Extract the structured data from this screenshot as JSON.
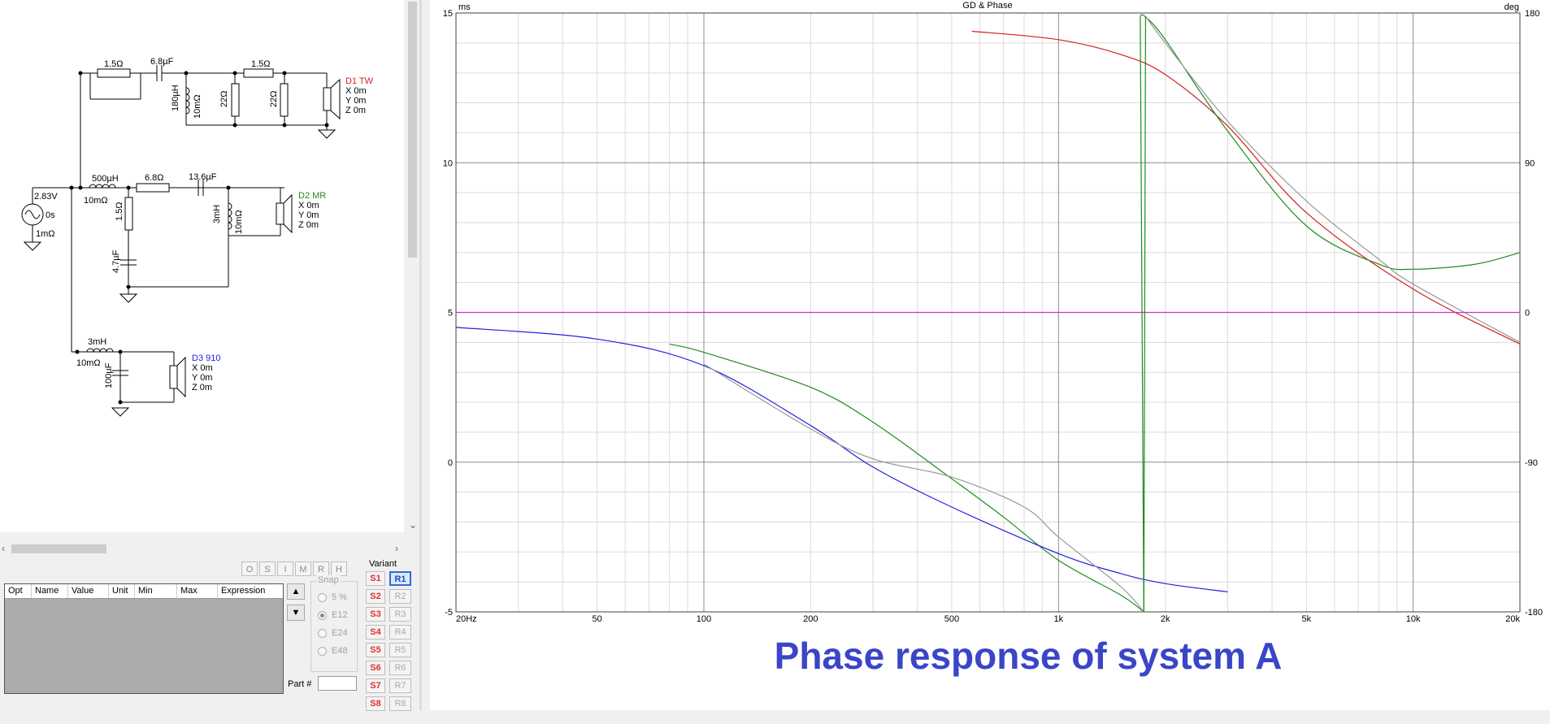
{
  "schematic": {
    "source": {
      "voltage": "2.83V",
      "delay": "0s",
      "resistance": "1mΩ"
    },
    "tweeter_branch": {
      "parallel_resistor": "1.5Ω",
      "capacitor": "6.8µF",
      "shunt_inductor": "180µH",
      "shunt_inductor_dcr": "10mΩ",
      "resistor_a": "22Ω",
      "resistor_b": "22Ω",
      "series_resistor": "1.5Ω",
      "driver": {
        "name": "D1 TW",
        "x": "X 0m",
        "y": "Y 0m",
        "z": "Z 0m",
        "color": "#e02020"
      }
    },
    "mid_branch": {
      "inductor": "500µH",
      "inductor_dcr": "10mΩ",
      "resistor": "6.8Ω",
      "capacitor": "13.6µF",
      "zobel_resistor": "1.5Ω",
      "zobel_capacitor": "4.7µF",
      "shunt_inductor": "3mH",
      "shunt_inductor_dcr": "10mΩ",
      "driver": {
        "name": "D2 MR",
        "x": "X 0m",
        "y": "Y 0m",
        "z": "Z 0m",
        "color": "#1a8a1a"
      }
    },
    "woofer_branch": {
      "inductor": "3mH",
      "inductor_dcr": "10mΩ",
      "capacitor": "100µF",
      "driver": {
        "name": "D3 910",
        "x": "X 0m",
        "y": "Y 0m",
        "z": "Z 0m",
        "color": "#2020e0"
      }
    }
  },
  "toolbar": {
    "buttons": [
      "O",
      "S",
      "I",
      "M",
      "R",
      "H"
    ]
  },
  "parts_table": {
    "columns": [
      "Opt",
      "Name",
      "Value",
      "Unit",
      "Min",
      "Max",
      "Expression"
    ]
  },
  "snap": {
    "title": "Snap",
    "options": [
      "5 %",
      "E12",
      "E24",
      "E48"
    ],
    "selected": "E12"
  },
  "part_number": {
    "label": "Part #",
    "value": ""
  },
  "variant": {
    "label": "Variant",
    "s_buttons": [
      "S1",
      "S2",
      "S3",
      "S4",
      "S5",
      "S6",
      "S7",
      "S8"
    ],
    "r_buttons": [
      "R1",
      "R2",
      "R3",
      "R4",
      "R5",
      "R6",
      "R7",
      "R8"
    ],
    "active": "R1"
  },
  "chart_data": {
    "type": "line",
    "title": "GD & Phase",
    "caption": "Phase response of system A",
    "x_scale": "log",
    "xlim": [
      20,
      20000
    ],
    "x_ticks": [
      {
        "v": 20,
        "label": "20Hz"
      },
      {
        "v": 50,
        "label": "50"
      },
      {
        "v": 100,
        "label": "100"
      },
      {
        "v": 200,
        "label": "200"
      },
      {
        "v": 500,
        "label": "500"
      },
      {
        "v": 1000,
        "label": "1k"
      },
      {
        "v": 2000,
        "label": "2k"
      },
      {
        "v": 5000,
        "label": "5k"
      },
      {
        "v": 10000,
        "label": "10k"
      },
      {
        "v": 20000,
        "label": "20k"
      }
    ],
    "left_axis": {
      "unit": "ms",
      "ylim": [
        -5,
        15
      ],
      "ticks": [
        "-5",
        "0",
        "5",
        "10",
        "15"
      ]
    },
    "right_axis": {
      "unit": "deg",
      "ylim": [
        -180,
        180
      ],
      "ticks": [
        "-180",
        "-90",
        "0",
        "90",
        "180"
      ]
    },
    "grid": true,
    "series": [
      {
        "color": "#d42020",
        "axis": "deg",
        "x": [
          570,
          1000,
          1500,
          2000,
          3000,
          5000,
          10000,
          20000
        ],
        "y": [
          169,
          164,
          155,
          143,
          112,
          60,
          14,
          -19
        ]
      },
      {
        "color": "#1e8c1e",
        "axis": "deg",
        "x": [
          1700,
          1750,
          2000,
          3000,
          5000,
          8000,
          10000,
          15000,
          20000
        ],
        "y": [
          178,
          178,
          164,
          109,
          52,
          29,
          26,
          29,
          36
        ]
      },
      {
        "color": "#1e8c1e",
        "axis": "deg",
        "x": [
          80,
          100,
          200,
          300,
          500,
          700,
          1000,
          1500,
          1740
        ],
        "y": [
          -19,
          -24,
          -45,
          -66,
          -100,
          -123,
          -149,
          -170,
          -180
        ]
      },
      {
        "color": "#2222e0",
        "axis": "deg",
        "x": [
          20,
          50,
          100,
          200,
          300,
          500,
          1000,
          1500,
          2000,
          3000
        ],
        "y": [
          -9,
          -16,
          -32,
          -68,
          -93,
          -117,
          -145,
          -157,
          -163,
          -168
        ]
      },
      {
        "color": "#999999",
        "axis": "deg",
        "x": [
          100,
          200,
          300,
          500,
          800,
          1000,
          1500,
          1740
        ],
        "y": [
          -31,
          -70,
          -88,
          -99,
          -117,
          -135,
          -165,
          -180
        ]
      },
      {
        "color": "#999999",
        "axis": "deg",
        "x": [
          1760,
          2000,
          3000,
          5000,
          8000,
          10000,
          20000
        ],
        "y": [
          178,
          162,
          115,
          67,
          32,
          17,
          -18
        ]
      },
      {
        "color": "#cc33cc",
        "axis": "deg",
        "x": [
          20,
          20000
        ],
        "y": [
          0,
          0
        ]
      }
    ]
  }
}
